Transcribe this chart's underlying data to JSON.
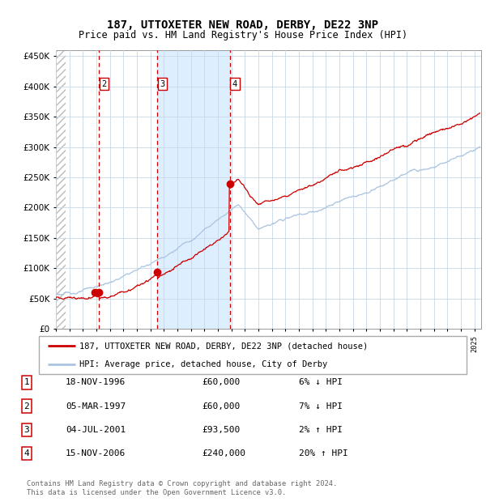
{
  "title": "187, UTTOXETER NEW ROAD, DERBY, DE22 3NP",
  "subtitle": "Price paid vs. HM Land Registry's House Price Index (HPI)",
  "footer": "Contains HM Land Registry data © Crown copyright and database right 2024.\nThis data is licensed under the Open Government Licence v3.0.",
  "legend_line1": "187, UTTOXETER NEW ROAD, DERBY, DE22 3NP (detached house)",
  "legend_line2": "HPI: Average price, detached house, City of Derby",
  "transactions": [
    {
      "num": "1",
      "date": "18-NOV-1996",
      "price": "£60,000",
      "hpi": "6% ↓ HPI",
      "year": 1996.88,
      "price_val": 60000
    },
    {
      "num": "2",
      "date": "05-MAR-1997",
      "price": "£60,000",
      "hpi": "7% ↓ HPI",
      "year": 1997.18,
      "price_val": 60000
    },
    {
      "num": "3",
      "date": "04-JUL-2001",
      "price": "£93,500",
      "hpi": "2% ↑ HPI",
      "year": 2001.5,
      "price_val": 93500
    },
    {
      "num": "4",
      "date": "15-NOV-2006",
      "price": "£240,000",
      "hpi": "20% ↑ HPI",
      "year": 2006.87,
      "price_val": 240000
    }
  ],
  "hpi_color": "#aac4e0",
  "price_color": "#cc0000",
  "shade_color": "#ddeeff",
  "grid_color": "#c8d8e8",
  "ylim": [
    0,
    460000
  ],
  "xlim_start": 1994.0,
  "xlim_end": 2025.5
}
